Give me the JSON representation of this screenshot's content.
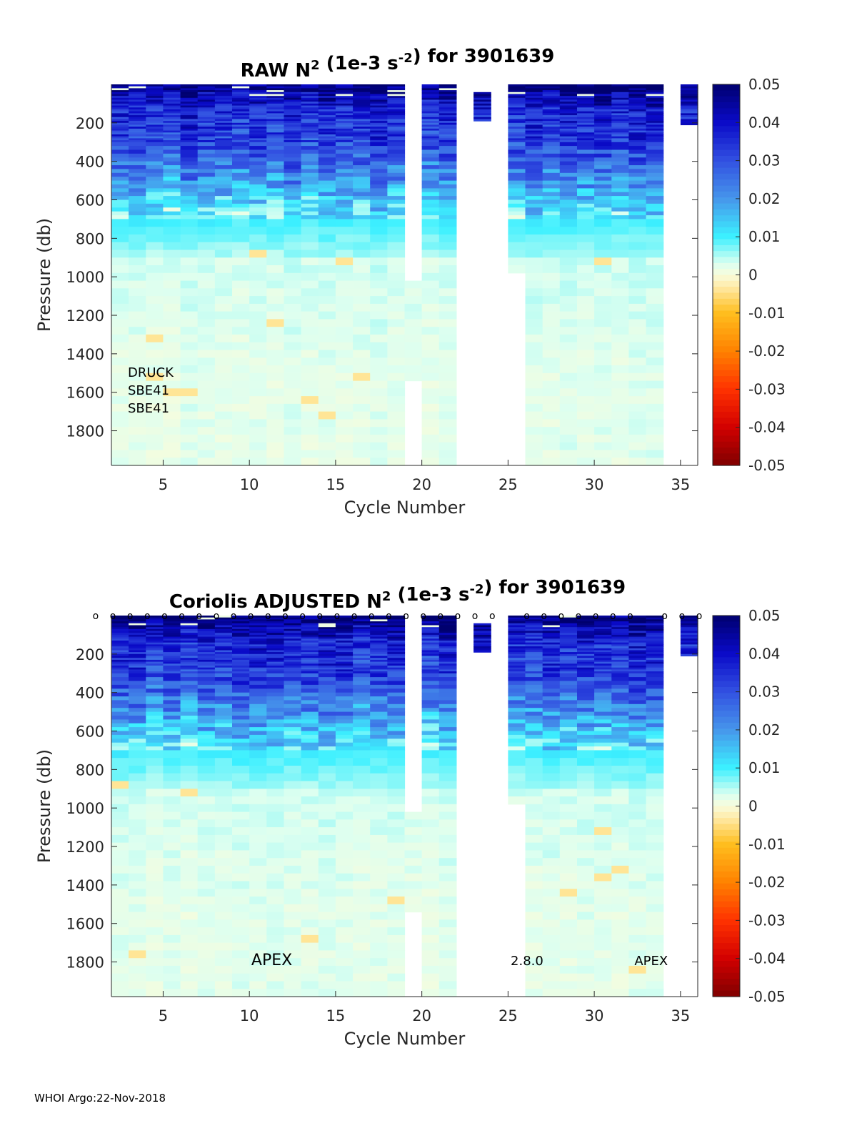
{
  "footer": "WHOI Argo:22-Nov-2018",
  "colorbar": {
    "ticks": [
      "0.05",
      "0.04",
      "0.03",
      "0.02",
      "0.01",
      "0",
      "-0.01",
      "-0.02",
      "-0.03",
      "-0.04",
      "-0.05"
    ],
    "range": [
      -0.05,
      0.05
    ],
    "colormap": "jet-like (dark red → orange → pale yellow at 0 → cyan → blue → dark blue)"
  },
  "chart_data": [
    {
      "type": "heatmap",
      "title": "RAW N² (1e-3 s⁻²) for 3901639",
      "title_parts": {
        "pre": "RAW N",
        "sup1": "2",
        "mid": " (1e-3 s",
        "sup2": "-2",
        "post": ") for 3901639"
      },
      "xlabel": "Cycle Number",
      "ylabel": "Pressure (db)",
      "xlim": [
        2,
        36
      ],
      "ylim": [
        0,
        1980
      ],
      "y_reversed": true,
      "xticks": [
        "5",
        "10",
        "15",
        "20",
        "25",
        "30",
        "35"
      ],
      "yticks": [
        "200",
        "400",
        "600",
        "800",
        "1000",
        "1200",
        "1400",
        "1600",
        "1800"
      ],
      "annotations": [
        "DRUCK",
        "SBE41",
        "SBE41"
      ],
      "missing_profiles": [
        {
          "cycle": 20,
          "pmin": 0,
          "pmax": 1000
        },
        {
          "cycle": 20,
          "pmin": 1525,
          "pmax": 1980
        },
        {
          "cycle": 23,
          "pmin": 0,
          "pmax": 1980
        },
        {
          "cycle": 24,
          "pmin": 0,
          "pmax": 40
        },
        {
          "cycle": 24,
          "pmin": 190,
          "pmax": 1980
        },
        {
          "cycle": 25,
          "pmin": 0,
          "pmax": 1740
        },
        {
          "cycle": 25,
          "pmin": 1740,
          "pmax": 1980
        },
        {
          "cycle": 26,
          "pmin": 980,
          "pmax": 1980
        },
        {
          "cycle": 35,
          "pmin": 0,
          "pmax": 1980
        },
        {
          "cycle": 36,
          "pmin": 210,
          "pmax": 1980
        }
      ],
      "value_profile_note": "N² ~0.04-0.05 near surface, ~0.02-0.03 at 200-500 db, ~0.01 at 600 db, ~0.002 below 1000 db"
    },
    {
      "type": "heatmap",
      "title": "Coriolis ADJUSTED N² (1e-3 s⁻²) for 3901639",
      "title_parts": {
        "pre": "Coriolis  ADJUSTED N",
        "sup1": "2",
        "mid": " (1e-3 s",
        "sup2": "-2",
        "post": ") for 3901639"
      },
      "xlabel": "Cycle Number",
      "ylabel": "Pressure (db)",
      "xlim": [
        2,
        36
      ],
      "ylim": [
        0,
        1980
      ],
      "y_reversed": true,
      "xticks": [
        "5",
        "10",
        "15",
        "20",
        "25",
        "30",
        "35"
      ],
      "yticks": [
        "200",
        "400",
        "600",
        "800",
        "1000",
        "1200",
        "1400",
        "1600",
        "1800"
      ],
      "annotations": [
        {
          "text": "APEX",
          "cycle": 11.3
        },
        {
          "text": "2.8.0",
          "cycle": 26.1
        },
        {
          "text": "APEX",
          "cycle": 33.3
        }
      ],
      "qc_marker": "o",
      "qc_marked_cycles": [
        2,
        3,
        4,
        5,
        6,
        7,
        8,
        9,
        10,
        11,
        12,
        13,
        14,
        15,
        16,
        17,
        18,
        19,
        20,
        21,
        22,
        23,
        24,
        25,
        27,
        28,
        29,
        30,
        31,
        32,
        33,
        35,
        36,
        37
      ]
    }
  ]
}
